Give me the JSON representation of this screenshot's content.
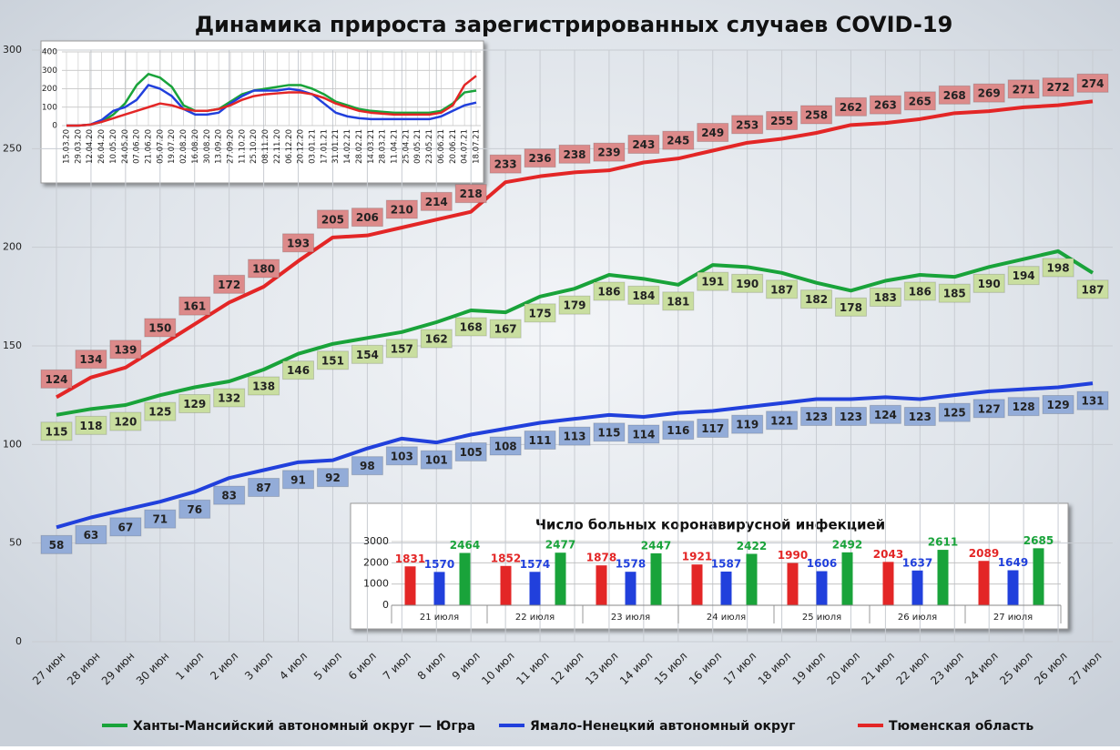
{
  "chart_data": [
    {
      "type": "line",
      "title": "Динамика прироста зарегистрированных случаев COVID-19",
      "categories": [
        "27 июн",
        "28 июн",
        "29 июн",
        "30 июн",
        "1 июл",
        "2 июл",
        "3 июл",
        "4 июл",
        "5 июл",
        "6 июл",
        "7 июл",
        "8 июл",
        "9 июл",
        "10 июл",
        "11 июл",
        "12 июл",
        "13 июл",
        "14 июл",
        "15 июл",
        "16 июл",
        "17 июл",
        "18 июл",
        "19 июл",
        "20 июл",
        "21 июл",
        "22 июл",
        "23 июл",
        "24 июл",
        "25 июл",
        "26 июл",
        "27 июл"
      ],
      "series": [
        {
          "name": "Ханты-Мансийский автономный округ — Югра",
          "color": "#19a33a",
          "values": [
            115,
            118,
            120,
            125,
            129,
            132,
            138,
            146,
            151,
            154,
            157,
            162,
            168,
            167,
            175,
            179,
            186,
            184,
            181,
            191,
            190,
            187,
            182,
            178,
            183,
            186,
            185,
            190,
            194,
            198,
            187
          ]
        },
        {
          "name": "Ямало-Ненецкий автономный округ",
          "color": "#2140dc",
          "values": [
            58,
            63,
            67,
            71,
            76,
            83,
            87,
            91,
            92,
            98,
            103,
            101,
            105,
            108,
            111,
            113,
            115,
            114,
            116,
            117,
            119,
            121,
            123,
            123,
            124,
            123,
            125,
            127,
            128,
            129,
            131
          ]
        },
        {
          "name": "Тюменская область",
          "color": "#e32626",
          "values": [
            124,
            134,
            139,
            150,
            161,
            172,
            180,
            193,
            205,
            206,
            210,
            214,
            218,
            233,
            236,
            238,
            239,
            243,
            245,
            249,
            253,
            255,
            258,
            262,
            263,
            265,
            268,
            269,
            271,
            272,
            274
          ]
        }
      ],
      "ylim": [
        0,
        300
      ],
      "yticks": [
        0,
        50,
        100,
        150,
        200,
        250,
        300
      ],
      "grid": true,
      "legend": "bottom"
    },
    {
      "type": "line",
      "categories": [
        "15.03.20",
        "29.03.20",
        "12.04.20",
        "26.04.20",
        "10.05.20",
        "24.05.20",
        "07.06.20",
        "21.06.20",
        "05.07.20",
        "19.07.20",
        "02.08.20",
        "16.08.20",
        "30.08.20",
        "13.09.20",
        "27.09.20",
        "11.10.20",
        "25.10.20",
        "08.11.20",
        "22.11.20",
        "06.12.20",
        "20.12.20",
        "03.01.21",
        "17.01.21",
        "31.01.21",
        "14.02.21",
        "28.02.21",
        "14.03.21",
        "28.03.21",
        "11.04.21",
        "25.04.21",
        "09.05.21",
        "23.05.21",
        "06.06.21",
        "20.06.21",
        "04.07.21",
        "18.07.21"
      ],
      "series": [
        {
          "color": "#19a33a",
          "values": [
            0,
            0,
            5,
            20,
            60,
            120,
            220,
            280,
            260,
            210,
            110,
            80,
            80,
            90,
            130,
            170,
            190,
            200,
            210,
            220,
            220,
            200,
            170,
            130,
            110,
            90,
            80,
            75,
            70,
            70,
            70,
            70,
            80,
            120,
            180,
            190
          ]
        },
        {
          "color": "#2140dc",
          "values": [
            0,
            0,
            5,
            30,
            80,
            100,
            140,
            220,
            200,
            160,
            90,
            60,
            60,
            70,
            120,
            160,
            190,
            190,
            190,
            200,
            190,
            170,
            120,
            70,
            50,
            40,
            35,
            35,
            35,
            35,
            35,
            35,
            50,
            80,
            110,
            125
          ]
        },
        {
          "color": "#e32626",
          "values": [
            0,
            0,
            5,
            20,
            40,
            60,
            80,
            100,
            120,
            110,
            90,
            80,
            80,
            90,
            110,
            140,
            160,
            170,
            175,
            180,
            180,
            170,
            150,
            120,
            100,
            80,
            70,
            65,
            60,
            60,
            60,
            60,
            70,
            110,
            220,
            270
          ]
        }
      ],
      "ylim": [
        0,
        400
      ],
      "yticks": [
        0,
        100,
        200,
        300,
        400
      ],
      "grid": true
    },
    {
      "type": "bar",
      "title": "Число больных коронавирусной инфекцией",
      "categories": [
        "21 июля",
        "22 июля",
        "23 июля",
        "24 июля",
        "25 июля",
        "26 июля",
        "27 июля"
      ],
      "series": [
        {
          "color": "#e32626",
          "values": [
            1831,
            1852,
            1878,
            1921,
            1990,
            2043,
            2089
          ]
        },
        {
          "color": "#2140dc",
          "values": [
            1570,
            1574,
            1578,
            1587,
            1606,
            1637,
            1649
          ]
        },
        {
          "color": "#19a33a",
          "values": [
            2464,
            2477,
            2447,
            2422,
            2492,
            2611,
            2685
          ]
        }
      ],
      "ylim": [
        0,
        3000
      ],
      "yticks": [
        0,
        1000,
        2000,
        3000
      ]
    }
  ]
}
